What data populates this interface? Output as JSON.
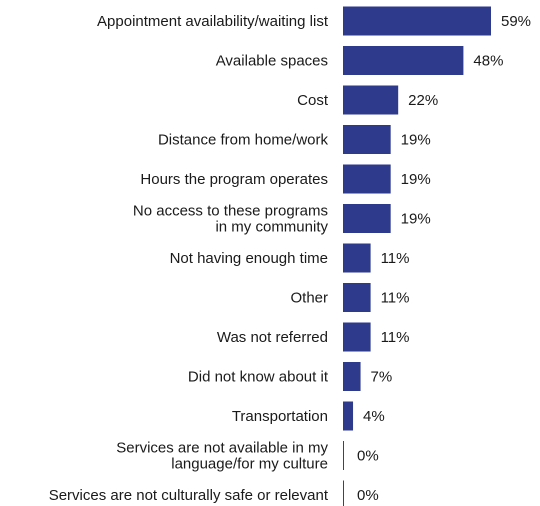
{
  "chart_data": {
    "type": "bar",
    "orientation": "horizontal",
    "title": "",
    "xlabel": "",
    "ylabel": "",
    "xlim": [
      0,
      59
    ],
    "grid": false,
    "legend": "none",
    "bar_color": "#2e3a8c",
    "value_suffix": "%",
    "categories": [
      [
        "Appointment availability/waiting list"
      ],
      [
        "Available spaces"
      ],
      [
        "Cost"
      ],
      [
        "Distance from home/work"
      ],
      [
        "Hours the program operates"
      ],
      [
        "No access to these programs",
        "in my community"
      ],
      [
        "Not having enough time"
      ],
      [
        "Other"
      ],
      [
        "Was not referred"
      ],
      [
        "Did not know about it"
      ],
      [
        "Transportation"
      ],
      [
        "Services are not available in my",
        "language/for my culture"
      ],
      [
        "Services are not culturally safe or relevant"
      ]
    ],
    "values": [
      59,
      48,
      22,
      19,
      19,
      19,
      11,
      11,
      11,
      7,
      4,
      0,
      0
    ]
  }
}
